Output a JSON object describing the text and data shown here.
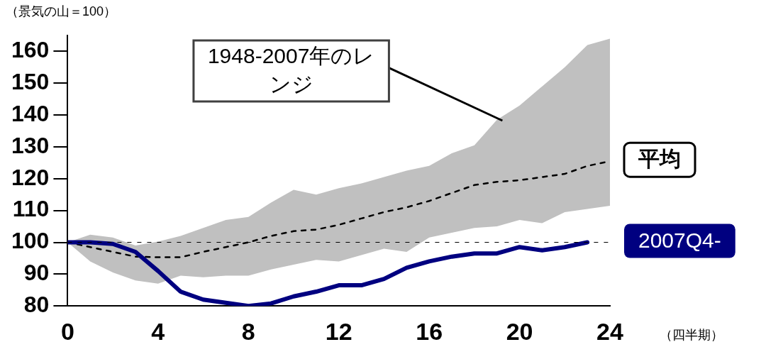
{
  "chart_data": {
    "type": "line",
    "ylabel": "（景気の山＝100）",
    "xlabel": "（四半期）",
    "x": [
      0,
      1,
      2,
      3,
      4,
      5,
      6,
      7,
      8,
      9,
      10,
      11,
      12,
      13,
      14,
      15,
      16,
      17,
      18,
      19,
      20,
      21,
      22,
      23,
      24
    ],
    "xlim": [
      0,
      24
    ],
    "xticks": [
      0,
      4,
      8,
      12,
      16,
      20,
      24
    ],
    "ylim": [
      80,
      165
    ],
    "yticks": [
      80,
      90,
      100,
      110,
      120,
      130,
      140,
      150,
      160
    ],
    "grid": false,
    "legend": false,
    "marker": "none",
    "series": [
      {
        "name": "平均",
        "color": "#000000",
        "line_style": "dashed",
        "values": [
          100,
          98.5,
          97,
          95.5,
          95.3,
          95.3,
          97,
          98.5,
          100,
          102,
          103.5,
          104,
          105.5,
          107.5,
          109.5,
          111,
          113,
          115.5,
          118,
          119,
          119.5,
          120.5,
          121.5,
          124,
          125.5
        ],
        "lower": [
          100,
          94,
          90.5,
          88,
          87,
          89.5,
          89,
          89.5,
          89.5,
          91.5,
          93,
          94.5,
          94,
          96,
          98,
          97,
          101.5,
          103,
          104.5,
          105,
          107,
          106,
          109.5,
          110.5,
          111.5
        ],
        "upper": [
          100,
          102.4,
          101.5,
          99,
          100.2,
          102,
          104.5,
          107,
          108,
          112.5,
          116.5,
          115,
          117,
          118.5,
          120.5,
          122.5,
          124,
          128,
          130.5,
          138.5,
          143,
          149,
          155,
          162,
          164
        ]
      },
      {
        "name": "2007Q4-",
        "color": "#000080",
        "line_style": "solid",
        "values": [
          100,
          100,
          99.5,
          97,
          91,
          84.5,
          82,
          81,
          80,
          80.8,
          83,
          84.5,
          86.5,
          86.5,
          88.5,
          92,
          94,
          95.5,
          96.5,
          96.5,
          98.5,
          97.5,
          98.5,
          100,
          null
        ]
      }
    ],
    "ref_lines": [
      {
        "axis": "y",
        "value": 100,
        "line_style": "dashed",
        "color": "#000000"
      }
    ],
    "annotations": [
      "1948-2007年のレンジ"
    ]
  }
}
